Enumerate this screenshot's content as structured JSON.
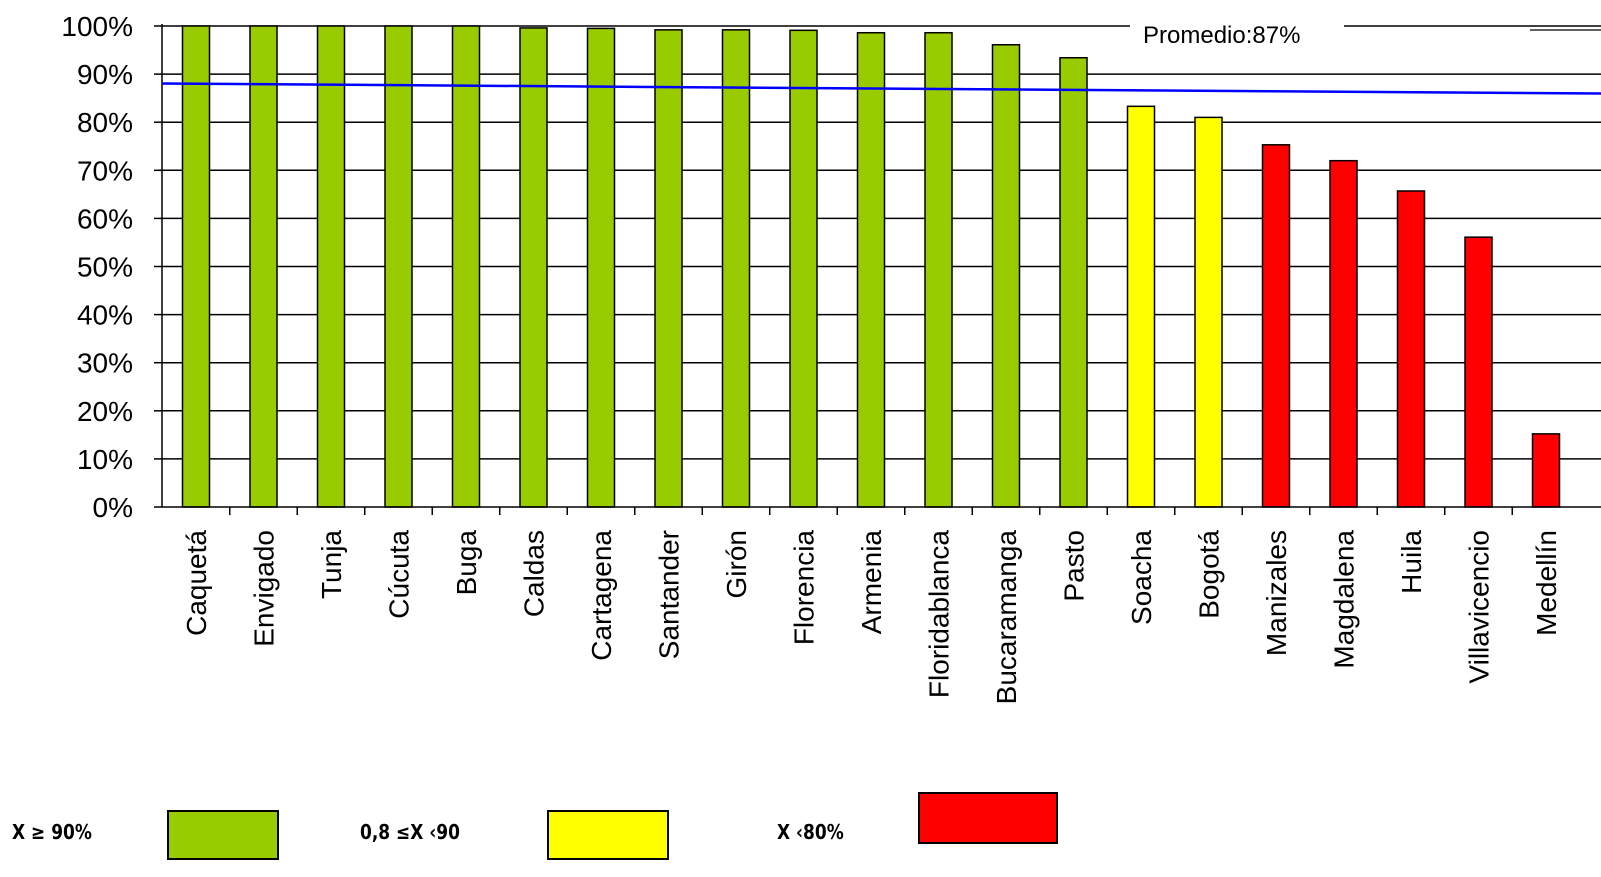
{
  "chart_data": {
    "type": "bar",
    "categories": [
      "Caquetá",
      "Envigado",
      "Tunja",
      "Cúcuta",
      "Buga",
      "Caldas",
      "Cartagena",
      "Santander",
      "Girón",
      "Florencia",
      "Armenia",
      "Floridablanca",
      "Bucaramanga",
      "Pasto",
      "Soacha",
      "Bogotá",
      "Manizales",
      "Magdalena",
      "Huila",
      "Villavicencio",
      "Medellín"
    ],
    "values": [
      100,
      100,
      100,
      100,
      100,
      99.6,
      99.5,
      99.2,
      99.2,
      99.1,
      98.6,
      98.6,
      96.1,
      93.4,
      83.3,
      81.0,
      75.3,
      72.0,
      65.7,
      56.1,
      15.2
    ],
    "colors": [
      "#99cc00",
      "#99cc00",
      "#99cc00",
      "#99cc00",
      "#99cc00",
      "#99cc00",
      "#99cc00",
      "#99cc00",
      "#99cc00",
      "#99cc00",
      "#99cc00",
      "#99cc00",
      "#99cc00",
      "#99cc00",
      "#ffff00",
      "#ffff00",
      "#ff0000",
      "#ff0000",
      "#ff0000",
      "#ff0000",
      "#ff0000"
    ],
    "y_tick_labels": [
      "0%",
      "10%",
      "20%",
      "30%",
      "40%",
      "50%",
      "60%",
      "70%",
      "80%",
      "90%",
      "100%"
    ],
    "ylim": [
      0,
      100
    ],
    "grid": true,
    "average": {
      "value": 87,
      "label": "Promedio:87%",
      "color": "#0000ff"
    }
  },
  "legend": {
    "items": [
      {
        "label": "X ≥ 90%",
        "color": "#99cc00"
      },
      {
        "label": "0,8 ≤X ‹90",
        "color": "#ffff00"
      },
      {
        "label": "X ‹80%",
        "color": "#ff0000"
      }
    ]
  }
}
